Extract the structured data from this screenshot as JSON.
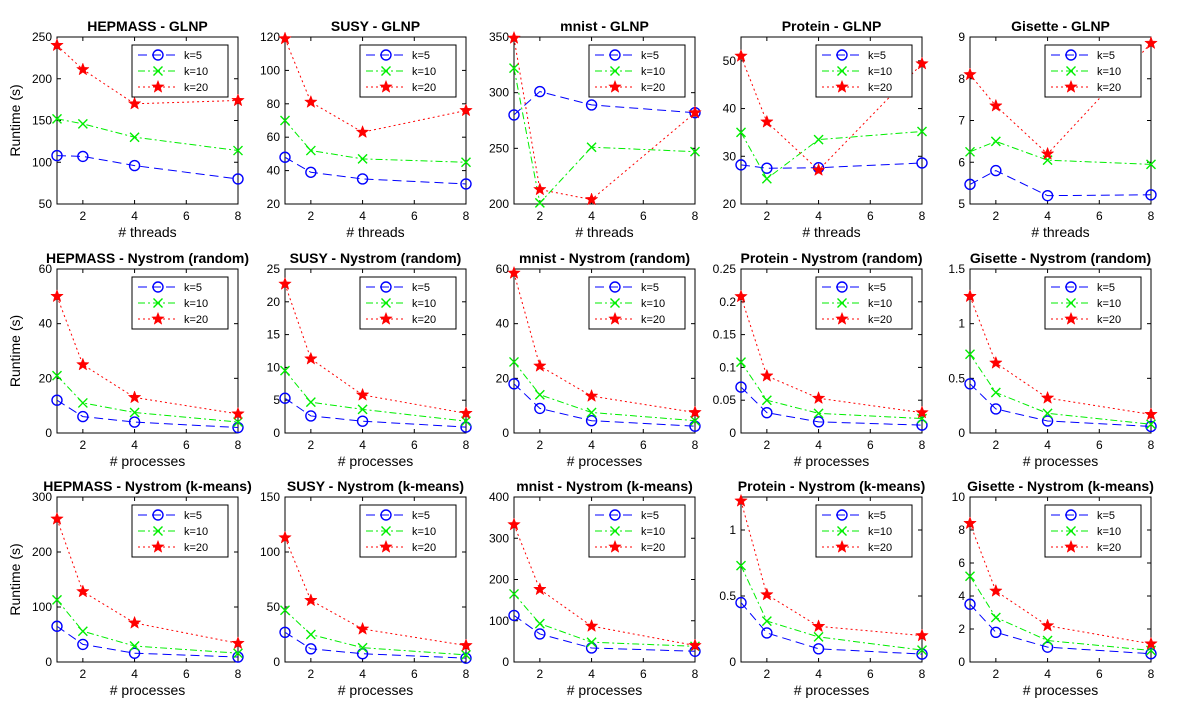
{
  "figure": {
    "legend_labels": [
      "k=5",
      "k=10",
      "k=20"
    ],
    "series_colors": [
      "#0000ff",
      "#00ee00",
      "#ff0000"
    ]
  },
  "chart_data": [
    {
      "type": "line",
      "title": "HEPMASS - GLNP",
      "xlabel": "# threads",
      "ylabel": "Runtime (s)",
      "x": [
        1,
        2,
        4,
        8
      ],
      "xlim": [
        1,
        8
      ],
      "xticks": [
        2,
        4,
        6,
        8
      ],
      "ylim": [
        50,
        250
      ],
      "yticks": [
        50,
        100,
        150,
        200,
        250
      ],
      "series": [
        {
          "name": "k=5",
          "values": [
            108,
            107,
            96,
            80
          ]
        },
        {
          "name": "k=10",
          "values": [
            152,
            146,
            130,
            114
          ]
        },
        {
          "name": "k=20",
          "values": [
            240,
            211,
            170,
            174
          ]
        }
      ]
    },
    {
      "type": "line",
      "title": "SUSY - GLNP",
      "xlabel": "# threads",
      "ylabel": "",
      "x": [
        1,
        2,
        4,
        8
      ],
      "xlim": [
        1,
        8
      ],
      "xticks": [
        2,
        4,
        6,
        8
      ],
      "ylim": [
        20,
        120
      ],
      "yticks": [
        20,
        40,
        60,
        80,
        100,
        120
      ],
      "series": [
        {
          "name": "k=5",
          "values": [
            48,
            39,
            35,
            32
          ]
        },
        {
          "name": "k=10",
          "values": [
            70,
            52,
            47,
            45
          ]
        },
        {
          "name": "k=20",
          "values": [
            119,
            81,
            63,
            76
          ]
        }
      ]
    },
    {
      "type": "line",
      "title": "mnist - GLNP",
      "xlabel": "# threads",
      "ylabel": "",
      "x": [
        1,
        2,
        4,
        8
      ],
      "xlim": [
        1,
        8
      ],
      "xticks": [
        2,
        4,
        6,
        8
      ],
      "ylim": [
        200,
        350
      ],
      "yticks": [
        200,
        250,
        300,
        350
      ],
      "series": [
        {
          "name": "k=5",
          "values": [
            280,
            301,
            289,
            282
          ]
        },
        {
          "name": "k=10",
          "values": [
            322,
            201,
            251,
            247
          ]
        },
        {
          "name": "k=20",
          "values": [
            349,
            213,
            204,
            282
          ]
        }
      ]
    },
    {
      "type": "line",
      "title": "Protein - GLNP",
      "xlabel": "# threads",
      "ylabel": "",
      "x": [
        1,
        2,
        4,
        8
      ],
      "xlim": [
        1,
        8
      ],
      "xticks": [
        2,
        4,
        6,
        8
      ],
      "ylim": [
        20,
        55
      ],
      "yticks": [
        20,
        30,
        40,
        50
      ],
      "series": [
        {
          "name": "k=5",
          "values": [
            28.2,
            27.5,
            27.6,
            28.6
          ]
        },
        {
          "name": "k=10",
          "values": [
            35,
            25.3,
            33.5,
            35.2
          ]
        },
        {
          "name": "k=20",
          "values": [
            51,
            37.2,
            27.1,
            49.4
          ]
        }
      ]
    },
    {
      "type": "line",
      "title": "Gisette - GLNP",
      "xlabel": "# threads",
      "ylabel": "",
      "x": [
        1,
        2,
        4,
        8
      ],
      "xlim": [
        1,
        8
      ],
      "xticks": [
        2,
        4,
        6,
        8
      ],
      "ylim": [
        5,
        9
      ],
      "yticks": [
        5,
        6,
        7,
        8,
        9
      ],
      "series": [
        {
          "name": "k=5",
          "values": [
            5.47,
            5.8,
            5.2,
            5.22
          ]
        },
        {
          "name": "k=10",
          "values": [
            6.25,
            6.5,
            6.05,
            5.95
          ]
        },
        {
          "name": "k=20",
          "values": [
            8.1,
            7.35,
            6.2,
            8.85
          ]
        }
      ]
    },
    {
      "type": "line",
      "title": "HEPMASS - Nystrom (random)",
      "xlabel": "# processes",
      "ylabel": "Runtime (s)",
      "x": [
        1,
        2,
        4,
        8
      ],
      "xlim": [
        1,
        8
      ],
      "xticks": [
        2,
        4,
        6,
        8
      ],
      "ylim": [
        0,
        60
      ],
      "yticks": [
        0,
        20,
        40,
        60
      ],
      "series": [
        {
          "name": "k=5",
          "values": [
            12,
            6,
            4,
            2
          ]
        },
        {
          "name": "k=10",
          "values": [
            21,
            11,
            7.5,
            4
          ]
        },
        {
          "name": "k=20",
          "values": [
            50,
            25,
            13,
            7
          ]
        }
      ]
    },
    {
      "type": "line",
      "title": "SUSY - Nystrom (random)",
      "xlabel": "# processes",
      "ylabel": "",
      "x": [
        1,
        2,
        4,
        8
      ],
      "xlim": [
        1,
        8
      ],
      "xticks": [
        2,
        4,
        6,
        8
      ],
      "ylim": [
        0,
        25
      ],
      "yticks": [
        0,
        5,
        10,
        15,
        20,
        25
      ],
      "series": [
        {
          "name": "k=5",
          "values": [
            5.3,
            2.6,
            1.8,
            0.9
          ]
        },
        {
          "name": "k=10",
          "values": [
            9.5,
            4.7,
            3.6,
            1.8
          ]
        },
        {
          "name": "k=20",
          "values": [
            22.7,
            11.3,
            5.8,
            3
          ]
        }
      ]
    },
    {
      "type": "line",
      "title": "mnist - Nystrom (random)",
      "xlabel": "# processes",
      "ylabel": "",
      "x": [
        1,
        2,
        4,
        8
      ],
      "xlim": [
        1,
        8
      ],
      "xticks": [
        2,
        4,
        6,
        8
      ],
      "ylim": [
        0,
        60
      ],
      "yticks": [
        0,
        20,
        40,
        60
      ],
      "series": [
        {
          "name": "k=5",
          "values": [
            18,
            9,
            4.5,
            2.5
          ]
        },
        {
          "name": "k=10",
          "values": [
            26,
            14,
            7.5,
            4.5
          ]
        },
        {
          "name": "k=20",
          "values": [
            58.5,
            24.5,
            13.5,
            7.5
          ]
        }
      ]
    },
    {
      "type": "line",
      "title": "Protein - Nystrom (random)",
      "xlabel": "# processes",
      "ylabel": "",
      "x": [
        1,
        2,
        4,
        8
      ],
      "xlim": [
        1,
        8
      ],
      "xticks": [
        2,
        4,
        6,
        8
      ],
      "ylim": [
        0,
        0.25
      ],
      "yticks": [
        0,
        0.05,
        0.1,
        0.15,
        0.2,
        0.25
      ],
      "series": [
        {
          "name": "k=5",
          "values": [
            0.07,
            0.031,
            0.017,
            0.012
          ]
        },
        {
          "name": "k=10",
          "values": [
            0.108,
            0.05,
            0.03,
            0.022
          ]
        },
        {
          "name": "k=20",
          "values": [
            0.208,
            0.087,
            0.053,
            0.031
          ]
        }
      ]
    },
    {
      "type": "line",
      "title": "Gisette - Nystrom (random)",
      "xlabel": "# processes",
      "ylabel": "",
      "x": [
        1,
        2,
        4,
        8
      ],
      "xlim": [
        1,
        8
      ],
      "xticks": [
        2,
        4,
        6,
        8
      ],
      "ylim": [
        0,
        1.5
      ],
      "yticks": [
        0,
        0.5,
        1,
        1.5
      ],
      "series": [
        {
          "name": "k=5",
          "values": [
            0.45,
            0.22,
            0.11,
            0.06
          ]
        },
        {
          "name": "k=10",
          "values": [
            0.72,
            0.37,
            0.18,
            0.08
          ]
        },
        {
          "name": "k=20",
          "values": [
            1.25,
            0.64,
            0.32,
            0.17
          ]
        }
      ]
    },
    {
      "type": "line",
      "title": "HEPMASS - Nystrom (k-means)",
      "xlabel": "# processes",
      "ylabel": "Runtime (s)",
      "x": [
        1,
        2,
        4,
        8
      ],
      "xlim": [
        1,
        8
      ],
      "xticks": [
        2,
        4,
        6,
        8
      ],
      "ylim": [
        0,
        300
      ],
      "yticks": [
        0,
        100,
        200,
        300
      ],
      "series": [
        {
          "name": "k=5",
          "values": [
            65,
            32,
            16,
            9
          ]
        },
        {
          "name": "k=10",
          "values": [
            113,
            56,
            29,
            16
          ]
        },
        {
          "name": "k=20",
          "values": [
            260,
            128,
            71,
            34
          ]
        }
      ]
    },
    {
      "type": "line",
      "title": "SUSY - Nystrom (k-means)",
      "xlabel": "# processes",
      "ylabel": "",
      "x": [
        1,
        2,
        4,
        8
      ],
      "xlim": [
        1,
        8
      ],
      "xticks": [
        2,
        4,
        6,
        8
      ],
      "ylim": [
        0,
        150
      ],
      "yticks": [
        0,
        50,
        100,
        150
      ],
      "series": [
        {
          "name": "k=5",
          "values": [
            27,
            12,
            7.5,
            3.5
          ]
        },
        {
          "name": "k=10",
          "values": [
            47,
            25,
            13,
            6.5
          ]
        },
        {
          "name": "k=20",
          "values": [
            113,
            56,
            30,
            15
          ]
        }
      ]
    },
    {
      "type": "line",
      "title": "mnist - Nystrom (k-means)",
      "xlabel": "# processes",
      "ylabel": "",
      "x": [
        1,
        2,
        4,
        8
      ],
      "xlim": [
        1,
        8
      ],
      "xticks": [
        2,
        4,
        6,
        8
      ],
      "ylim": [
        0,
        400
      ],
      "yticks": [
        0,
        100,
        200,
        300,
        400
      ],
      "series": [
        {
          "name": "k=5",
          "values": [
            113,
            68,
            34,
            26
          ]
        },
        {
          "name": "k=10",
          "values": [
            165,
            93,
            48,
            38
          ]
        },
        {
          "name": "k=20",
          "values": [
            333,
            176,
            87,
            40
          ]
        }
      ]
    },
    {
      "type": "line",
      "title": "Protein - Nystrom (k-means)",
      "xlabel": "# processes",
      "ylabel": "",
      "x": [
        1,
        2,
        4,
        8
      ],
      "xlim": [
        1,
        8
      ],
      "xticks": [
        2,
        4,
        6,
        8
      ],
      "ylim": [
        0,
        1.25
      ],
      "yticks": [
        0,
        0.5,
        1
      ],
      "series": [
        {
          "name": "k=5",
          "values": [
            0.45,
            0.22,
            0.1,
            0.06
          ]
        },
        {
          "name": "k=10",
          "values": [
            0.73,
            0.31,
            0.19,
            0.09
          ]
        },
        {
          "name": "k=20",
          "values": [
            1.22,
            0.51,
            0.27,
            0.2
          ]
        }
      ]
    },
    {
      "type": "line",
      "title": "Gisette - Nystrom (k-means)",
      "xlabel": "# processes",
      "ylabel": "",
      "x": [
        1,
        2,
        4,
        8
      ],
      "xlim": [
        1,
        8
      ],
      "xticks": [
        2,
        4,
        6,
        8
      ],
      "ylim": [
        0,
        10
      ],
      "yticks": [
        0,
        2,
        4,
        6,
        8,
        10
      ],
      "series": [
        {
          "name": "k=5",
          "values": [
            3.5,
            1.8,
            0.9,
            0.5
          ]
        },
        {
          "name": "k=10",
          "values": [
            5.2,
            2.7,
            1.3,
            0.7
          ]
        },
        {
          "name": "k=20",
          "values": [
            8.4,
            4.3,
            2.2,
            1.1
          ]
        }
      ]
    }
  ]
}
